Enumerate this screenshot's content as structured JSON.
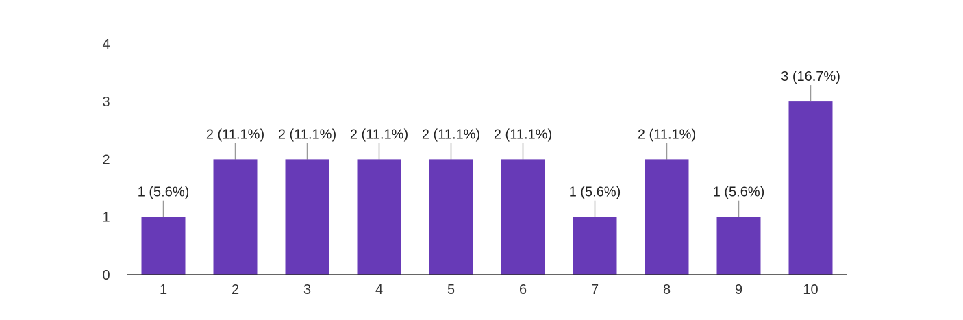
{
  "chart_data": {
    "type": "bar",
    "categories": [
      "1",
      "2",
      "3",
      "4",
      "5",
      "6",
      "7",
      "8",
      "9",
      "10"
    ],
    "values": [
      1,
      2,
      2,
      2,
      2,
      2,
      1,
      2,
      1,
      3
    ],
    "data_labels": [
      "1 (5.6%)",
      "2 (11.1%)",
      "2 (11.1%)",
      "2 (11.1%)",
      "2 (11.1%)",
      "2 (11.1%)",
      "1 (5.6%)",
      "2 (11.1%)",
      "1 (5.6%)",
      "3 (16.7%)"
    ],
    "y_ticks": [
      "0",
      "1",
      "2",
      "3",
      "4"
    ],
    "title": "",
    "xlabel": "",
    "ylabel": "",
    "ylim": [
      0,
      4
    ],
    "grid": false,
    "legend": "none",
    "colors": {
      "bar": "#673ab7",
      "axis": "#333333",
      "leader": "#999999"
    }
  }
}
